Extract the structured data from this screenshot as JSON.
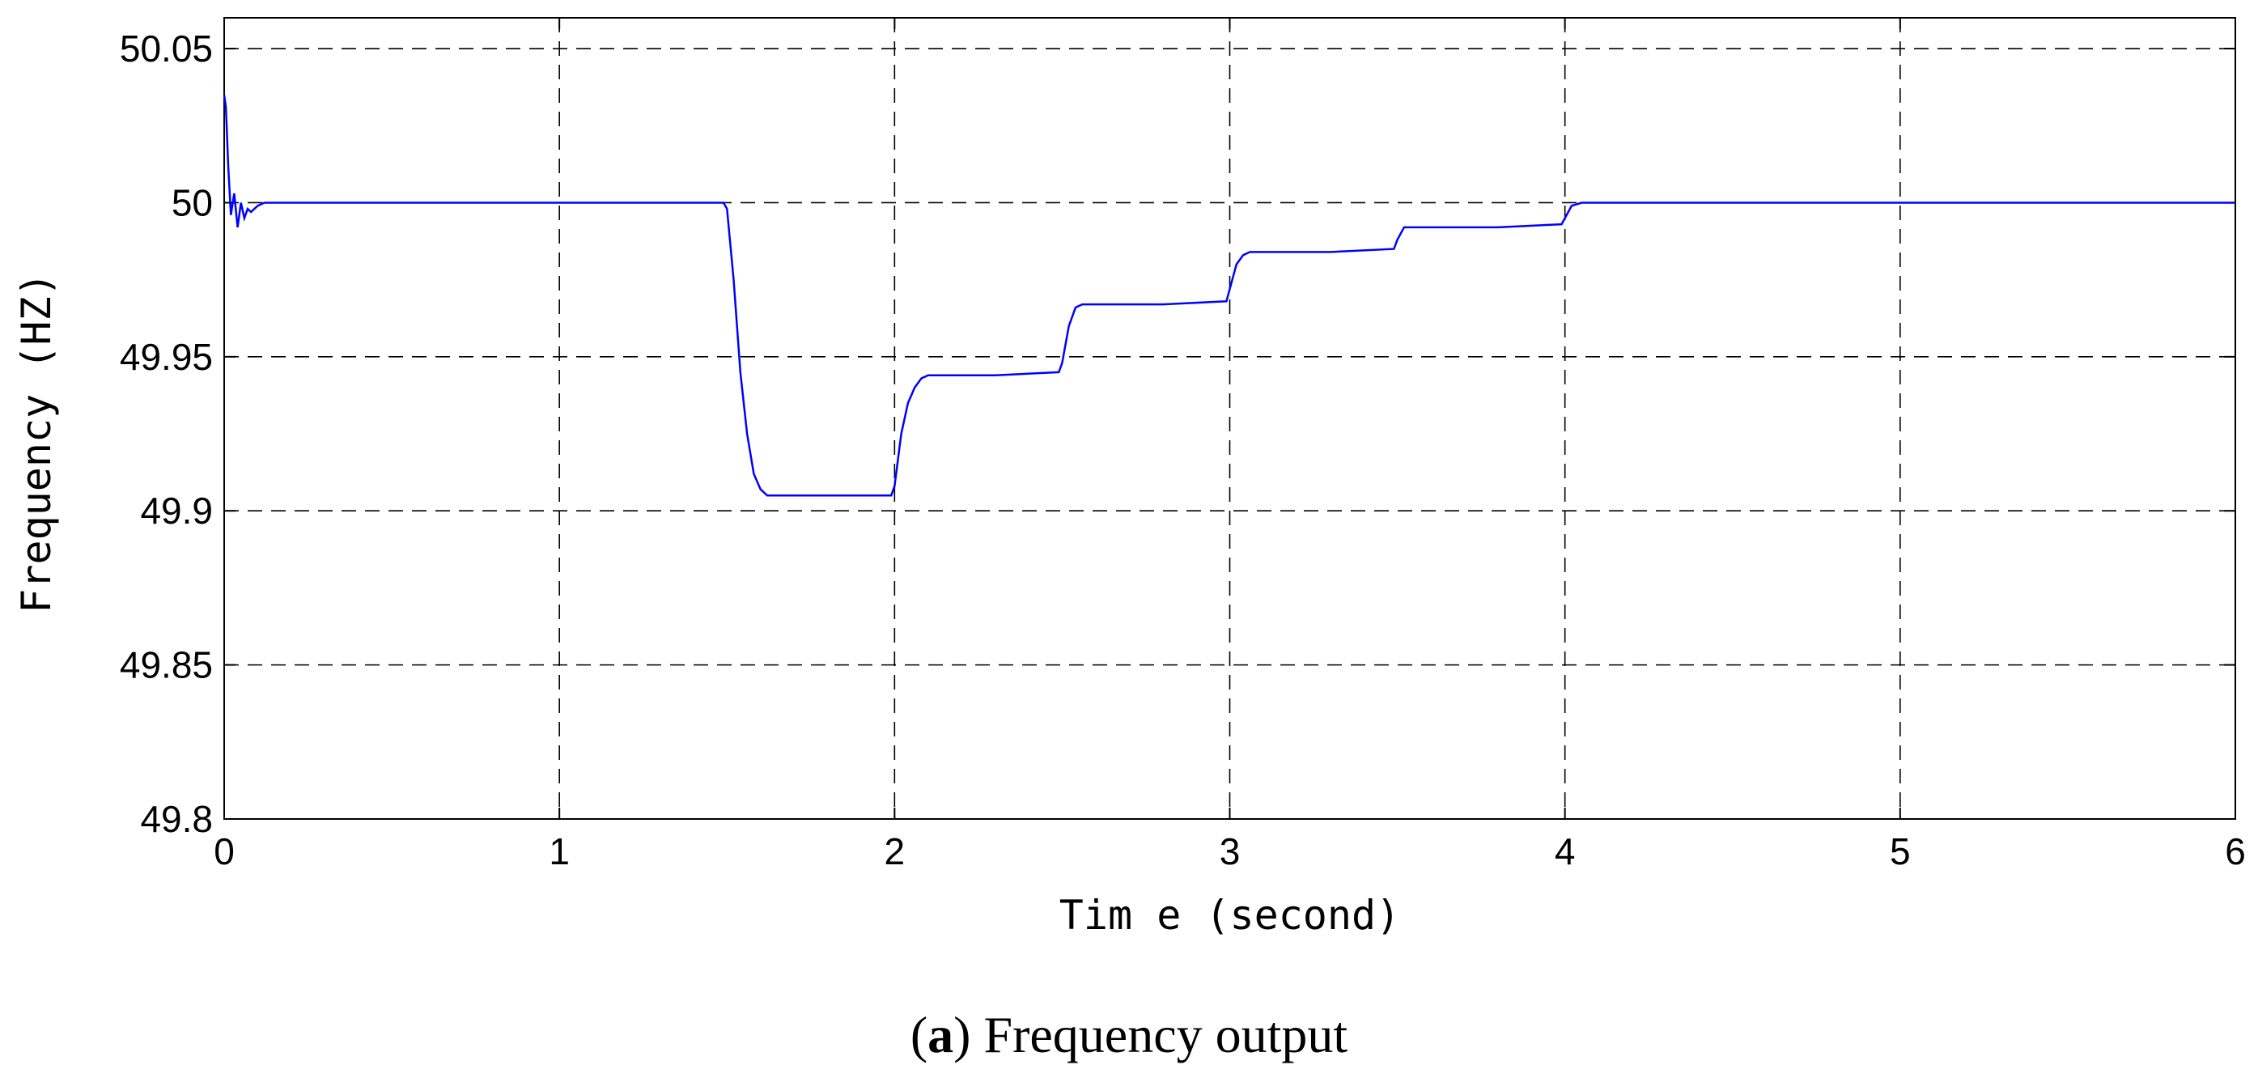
{
  "chart_data": {
    "type": "line",
    "xlabel": "Tim e (second)",
    "ylabel": "Frequency (HZ)",
    "xlim": [
      0,
      6
    ],
    "ylim": [
      49.8,
      50.06
    ],
    "xticks": [
      "0",
      "1",
      "2",
      "3",
      "4",
      "5",
      "6"
    ],
    "yticks": [
      "49.8",
      "49.85",
      "49.9",
      "49.95",
      "50",
      "50.05"
    ],
    "grid": true,
    "line_color": "#0000ff",
    "series": [
      {
        "x": [
          0,
          0.005,
          0.012,
          0.02,
          0.03,
          0.04,
          0.05,
          0.06,
          0.07,
          0.08,
          0.1,
          0.12,
          0.15,
          0.5,
          1.0,
          1.49,
          1.5,
          1.52,
          1.54,
          1.56,
          1.58,
          1.6,
          1.62,
          1.65,
          1.7,
          1.8,
          1.9,
          1.99,
          2.0,
          2.02,
          2.04,
          2.06,
          2.08,
          2.1,
          2.15,
          2.2,
          2.3,
          2.49,
          2.5,
          2.52,
          2.54,
          2.56,
          2.6,
          2.7,
          2.8,
          2.99,
          3.0,
          3.02,
          3.04,
          3.06,
          3.1,
          3.2,
          3.3,
          3.49,
          3.5,
          3.52,
          3.55,
          3.6,
          3.8,
          3.99,
          4.0,
          4.02,
          4.05,
          4.1,
          4.5,
          5.0,
          5.5,
          6.0
        ],
        "y": [
          50.035,
          50.031,
          50.012,
          49.996,
          50.003,
          49.992,
          50.0,
          49.995,
          49.998,
          49.997,
          49.999,
          50.0,
          50.0,
          50.0,
          50.0,
          50.0,
          49.998,
          49.975,
          49.945,
          49.925,
          49.912,
          49.907,
          49.905,
          49.905,
          49.905,
          49.905,
          49.905,
          49.905,
          49.908,
          49.925,
          49.935,
          49.94,
          49.943,
          49.944,
          49.944,
          49.944,
          49.944,
          49.945,
          49.948,
          49.96,
          49.966,
          49.967,
          49.967,
          49.967,
          49.967,
          49.968,
          49.972,
          49.98,
          49.983,
          49.984,
          49.984,
          49.984,
          49.984,
          49.985,
          49.988,
          49.992,
          49.992,
          49.992,
          49.992,
          49.993,
          49.995,
          49.999,
          50.0,
          50.0,
          50.0,
          50.0,
          50.0,
          50.0
        ]
      }
    ]
  },
  "caption": {
    "open_paren": "(",
    "letter": "a",
    "rest": ") Frequency output"
  }
}
